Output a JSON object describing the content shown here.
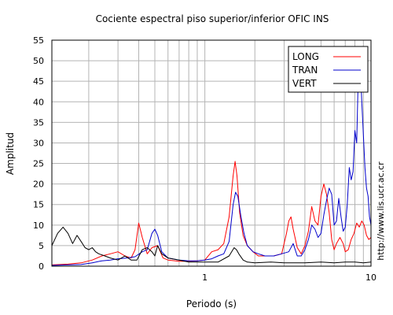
{
  "chart_data": {
    "type": "line",
    "title": "Cociente espectral piso superior/inferior  OFIC INS",
    "xlabel": "Periodo (s)",
    "ylabel": "Amplitud",
    "credit": "http://www.lis.ucr.ac.cr",
    "xscale": "log",
    "xlim": [
      0.12,
      10
    ],
    "ylim": [
      0,
      55
    ],
    "x_tick_labels": [
      "1",
      "10"
    ],
    "y_ticks": [
      0,
      5,
      10,
      15,
      20,
      25,
      30,
      35,
      40,
      45,
      50,
      55
    ],
    "grid": true,
    "legend_position": "top-right",
    "series": [
      {
        "name": "LONG",
        "color": "#ff0000",
        "x": [
          0.12,
          0.15,
          0.18,
          0.21,
          0.24,
          0.27,
          0.3,
          0.33,
          0.36,
          0.38,
          0.4,
          0.42,
          0.45,
          0.48,
          0.52,
          0.56,
          0.6,
          0.7,
          0.8,
          0.9,
          1.0,
          1.1,
          1.2,
          1.3,
          1.4,
          1.48,
          1.52,
          1.56,
          1.62,
          1.7,
          1.8,
          1.95,
          2.1,
          2.3,
          2.6,
          2.9,
          3.1,
          3.2,
          3.3,
          3.4,
          3.6,
          3.8,
          4.0,
          4.2,
          4.4,
          4.6,
          4.8,
          5.0,
          5.2,
          5.4,
          5.6,
          5.8,
          6.0,
          6.2,
          6.5,
          6.8,
          7.0,
          7.3,
          7.6,
          7.9,
          8.2,
          8.5,
          8.8,
          9.1,
          9.4,
          9.7,
          10.0
        ],
        "y": [
          0.3,
          0.5,
          0.8,
          1.5,
          2.5,
          3.0,
          3.5,
          2.5,
          2.0,
          4.0,
          10.5,
          7.0,
          3.0,
          4.5,
          5.0,
          2.0,
          1.5,
          1.2,
          1.2,
          1.3,
          1.5,
          3.5,
          4.0,
          5.5,
          12.0,
          22.0,
          25.5,
          22.0,
          13.0,
          7.5,
          5.0,
          3.5,
          2.5,
          2.5,
          2.5,
          3.0,
          8.0,
          11.0,
          12.0,
          9.0,
          4.5,
          3.0,
          5.0,
          8.5,
          14.5,
          11.0,
          10.0,
          17.0,
          20.0,
          17.5,
          13.0,
          6.5,
          4.0,
          5.5,
          7.0,
          5.5,
          3.5,
          4.0,
          6.5,
          8.0,
          10.5,
          9.5,
          11.0,
          10.0,
          7.5,
          6.5,
          7.0
        ]
      },
      {
        "name": "TRAN",
        "color": "#0000cc",
        "x": [
          0.12,
          0.15,
          0.18,
          0.21,
          0.24,
          0.27,
          0.3,
          0.34,
          0.38,
          0.42,
          0.45,
          0.48,
          0.5,
          0.52,
          0.55,
          0.6,
          0.7,
          0.8,
          0.9,
          1.0,
          1.1,
          1.2,
          1.3,
          1.4,
          1.48,
          1.53,
          1.58,
          1.65,
          1.72,
          1.8,
          1.95,
          2.1,
          2.3,
          2.6,
          2.9,
          3.2,
          3.4,
          3.6,
          3.8,
          4.0,
          4.2,
          4.4,
          4.6,
          4.8,
          5.0,
          5.2,
          5.4,
          5.6,
          5.8,
          6.0,
          6.2,
          6.4,
          6.6,
          6.8,
          7.0,
          7.2,
          7.4,
          7.6,
          7.8,
          8.0,
          8.2,
          8.4,
          8.6,
          8.8,
          9.0,
          9.2,
          9.4,
          9.6,
          9.8,
          10.0
        ],
        "y": [
          0.2,
          0.3,
          0.4,
          0.8,
          1.3,
          1.5,
          1.8,
          2.0,
          2.3,
          3.5,
          4.0,
          8.0,
          9.0,
          7.5,
          3.5,
          2.0,
          1.5,
          1.3,
          1.3,
          1.5,
          1.8,
          2.5,
          3.0,
          6.0,
          15.0,
          18.0,
          17.0,
          12.0,
          8.0,
          5.0,
          3.5,
          3.0,
          2.5,
          2.5,
          3.0,
          3.5,
          5.5,
          2.5,
          2.5,
          4.0,
          6.5,
          10.0,
          9.0,
          7.0,
          8.0,
          12.5,
          16.0,
          19.0,
          17.5,
          10.0,
          11.0,
          16.5,
          12.0,
          8.5,
          9.5,
          15.0,
          24.0,
          21.0,
          23.0,
          33.0,
          30.0,
          48.0,
          50.0,
          40.0,
          32.0,
          24.0,
          19.0,
          17.0,
          12.0,
          10.0
        ]
      },
      {
        "name": "VERT",
        "color": "#000000",
        "x": [
          0.12,
          0.13,
          0.14,
          0.15,
          0.16,
          0.17,
          0.18,
          0.19,
          0.2,
          0.21,
          0.22,
          0.23,
          0.25,
          0.27,
          0.3,
          0.33,
          0.36,
          0.39,
          0.42,
          0.45,
          0.48,
          0.5,
          0.52,
          0.55,
          0.6,
          0.7,
          0.8,
          1.0,
          1.2,
          1.4,
          1.5,
          1.55,
          1.6,
          1.7,
          1.8,
          2.0,
          2.5,
          3.0,
          4.0,
          5.0,
          6.0,
          7.0,
          8.0,
          9.0,
          10.0
        ],
        "y": [
          5.0,
          8.0,
          9.5,
          8.0,
          5.5,
          7.5,
          6.0,
          4.5,
          4.0,
          4.5,
          3.5,
          3.0,
          2.5,
          2.0,
          1.5,
          2.5,
          1.5,
          1.5,
          4.0,
          4.5,
          3.5,
          2.5,
          5.0,
          3.0,
          2.0,
          1.5,
          1.0,
          1.0,
          1.0,
          2.5,
          4.5,
          4.0,
          3.0,
          1.5,
          1.0,
          0.8,
          1.0,
          0.8,
          0.8,
          1.0,
          0.8,
          1.0,
          1.0,
          0.8,
          1.0
        ]
      }
    ]
  }
}
